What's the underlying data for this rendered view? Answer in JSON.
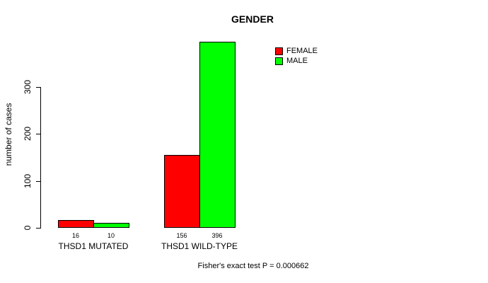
{
  "chart_data": {
    "type": "bar",
    "title": "GENDER",
    "ylabel": "number of cases",
    "xlabel": "",
    "categories": [
      "THSD1 MUTATED",
      "THSD1 WILD-TYPE"
    ],
    "series": [
      {
        "name": "FEMALE",
        "color": "#ff0000",
        "values": [
          16,
          156
        ]
      },
      {
        "name": "MALE",
        "color": "#00ff00",
        "values": [
          10,
          396
        ]
      }
    ],
    "yticks": [
      0,
      100,
      200,
      300
    ],
    "ylim": [
      0,
      400
    ],
    "grid": false,
    "legend_position": "top-right",
    "annotation": "Fisher's exact test P = 0.000662"
  }
}
